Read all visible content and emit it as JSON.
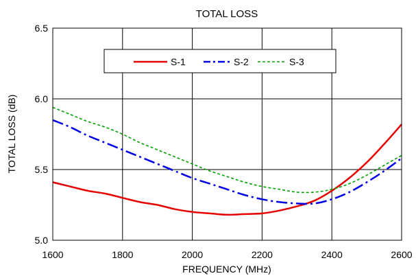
{
  "chart_data": {
    "type": "line",
    "title": "TOTAL LOSS",
    "xlabel": "FREQUENCY (MHz)",
    "ylabel": "TOTAL  LOSS (dB)",
    "xlim": [
      1600,
      2600
    ],
    "ylim": [
      5.0,
      6.5
    ],
    "x_ticks": [
      1600,
      1800,
      2000,
      2200,
      2400,
      2600
    ],
    "y_ticks": [
      "5.0",
      "5.5",
      "6.0",
      "6.5"
    ],
    "grid": true,
    "legend_position": "top",
    "series": [
      {
        "name": "S-1",
        "color": "#e60000",
        "style": "solid",
        "x": [
          1600,
          1650,
          1700,
          1750,
          1800,
          1850,
          1900,
          1950,
          2000,
          2050,
          2100,
          2150,
          2200,
          2250,
          2300,
          2350,
          2400,
          2450,
          2500,
          2550,
          2600
        ],
        "y": [
          5.41,
          5.38,
          5.35,
          5.33,
          5.3,
          5.27,
          5.25,
          5.22,
          5.2,
          5.19,
          5.18,
          5.185,
          5.19,
          5.21,
          5.24,
          5.28,
          5.35,
          5.44,
          5.55,
          5.68,
          5.82
        ]
      },
      {
        "name": "S-2",
        "color": "#0000e6",
        "style": "dashdot",
        "x": [
          1600,
          1650,
          1700,
          1750,
          1800,
          1850,
          1900,
          1950,
          2000,
          2050,
          2100,
          2150,
          2200,
          2250,
          2300,
          2350,
          2400,
          2450,
          2500,
          2550,
          2600
        ],
        "y": [
          5.85,
          5.8,
          5.74,
          5.69,
          5.64,
          5.59,
          5.54,
          5.49,
          5.44,
          5.4,
          5.36,
          5.32,
          5.29,
          5.27,
          5.26,
          5.26,
          5.29,
          5.34,
          5.41,
          5.49,
          5.58
        ]
      },
      {
        "name": "S-3",
        "color": "#00a000",
        "style": "dashed",
        "x": [
          1600,
          1650,
          1700,
          1750,
          1800,
          1850,
          1900,
          1950,
          2000,
          2050,
          2100,
          2150,
          2200,
          2250,
          2300,
          2350,
          2400,
          2450,
          2500,
          2550,
          2600
        ],
        "y": [
          5.94,
          5.89,
          5.84,
          5.8,
          5.75,
          5.69,
          5.64,
          5.59,
          5.54,
          5.49,
          5.45,
          5.41,
          5.38,
          5.36,
          5.34,
          5.34,
          5.36,
          5.4,
          5.46,
          5.53,
          5.6
        ]
      }
    ]
  }
}
